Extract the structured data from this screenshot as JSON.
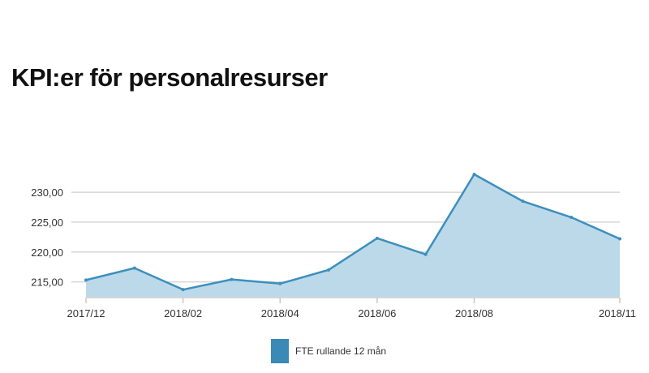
{
  "page": {
    "title": "KPI:er för personalresurser"
  },
  "colors": {
    "line": "#3d8fbd",
    "area": "#bcd9ea",
    "legend_swatch": "#3a89b7",
    "grid": "#d6d6d6",
    "axis": "#c8c8c8"
  },
  "chart_data": {
    "type": "area",
    "title": "",
    "xlabel": "",
    "ylabel": "",
    "x": [
      "2017/12",
      "2018/01",
      "2018/02",
      "2018/03",
      "2018/04",
      "2018/05",
      "2018/06",
      "2018/07",
      "2018/08",
      "2018/09",
      "2018/10",
      "2018/11"
    ],
    "x_tick_labels": [
      "2017/12",
      "2018/02",
      "2018/04",
      "2018/06",
      "2018/08",
      "2018/11"
    ],
    "y_tick_labels": [
      "215,00",
      "220,00",
      "225,00",
      "230,00"
    ],
    "y_ticks": [
      215,
      220,
      225,
      230
    ],
    "ylim": [
      212.5,
      233
    ],
    "grid": true,
    "legend_position": "bottom",
    "series": [
      {
        "name": "FTE rullande 12 mån",
        "values": [
          215.3,
          217.3,
          213.7,
          215.4,
          214.7,
          217.0,
          222.3,
          219.6,
          233.0,
          228.5,
          225.8,
          222.2
        ]
      }
    ]
  }
}
